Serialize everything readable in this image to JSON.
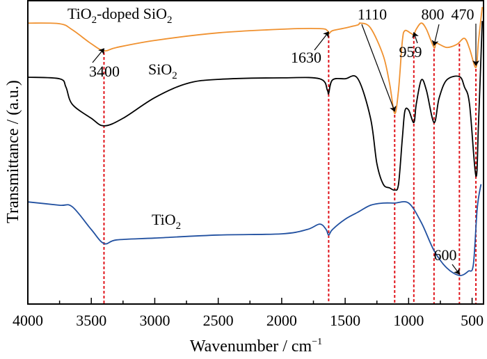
{
  "chart_data": {
    "type": "line",
    "title": "",
    "xlabel": "Wavenumber / cm",
    "xlabel_superscript": "−1",
    "ylabel": "Transmittance / (a.u.)",
    "xlim": [
      4000,
      410
    ],
    "ylim": [
      0,
      100
    ],
    "x_reversed": true,
    "grid": false,
    "x_ticks": [
      4000,
      3500,
      3000,
      2500,
      2000,
      1500,
      1000,
      500
    ],
    "x_tick_labels": [
      "4000",
      "3500",
      "3000",
      "2500",
      "2000",
      "1500",
      "1000",
      "500"
    ],
    "x_minor_ticks": [
      3750,
      3250,
      2750,
      2250,
      1750,
      1250,
      750
    ],
    "y_ticks_shown": false,
    "reference_lines": [
      3400,
      1630,
      1110,
      959,
      800,
      600,
      470
    ],
    "reference_line_color": "#e0141b",
    "series": [
      {
        "name": "TiO2-doped SiO2",
        "label_main": "TiO",
        "label_sub": "2",
        "label_rest": "-doped SiO",
        "label_sub2": "2",
        "color": "#f0912f",
        "x": [
          4000,
          3750,
          3650,
          3500,
          3400,
          3300,
          3000,
          2500,
          2000,
          1700,
          1640,
          1630,
          1600,
          1500,
          1400,
          1380,
          1300,
          1200,
          1150,
          1110,
          1080,
          1050,
          1030,
          980,
          959,
          940,
          900,
          860,
          800,
          780,
          700,
          620,
          560,
          520,
          470,
          450,
          420
        ],
        "y": [
          92.4,
          92.2,
          90.2,
          85.6,
          83.3,
          84.4,
          86.7,
          89.2,
          90.4,
          90.6,
          89.9,
          88.8,
          89.9,
          90.8,
          91.8,
          92.4,
          90.8,
          81.7,
          72.5,
          62.7,
          70.3,
          86.3,
          89.9,
          89.0,
          88.6,
          90.4,
          92.4,
          90.4,
          84.4,
          85.8,
          84.4,
          85.4,
          87.4,
          84.0,
          77.8,
          86.3,
          97.7
        ]
      },
      {
        "name": "SiO2",
        "label_main": "SiO",
        "label_sub": "2",
        "color": "#000000",
        "x": [
          4000,
          3750,
          3700,
          3650,
          3500,
          3400,
          3250,
          3000,
          2750,
          2500,
          2000,
          1700,
          1640,
          1630,
          1600,
          1500,
          1400,
          1300,
          1250,
          1200,
          1150,
          1110,
          1080,
          1050,
          1030,
          1000,
          959,
          940,
          900,
          860,
          800,
          760,
          700,
          600,
          560,
          520,
          470,
          450,
          420
        ],
        "y": [
          74.6,
          74.1,
          71.4,
          65.7,
          61.1,
          58.6,
          61.1,
          67.9,
          72.5,
          73.9,
          74.4,
          74.1,
          70.3,
          69.3,
          73.7,
          74.1,
          74.1,
          61.1,
          46.2,
          39.4,
          38.2,
          37.5,
          39.4,
          54.2,
          63.4,
          63.8,
          59.7,
          65.7,
          73.7,
          70.3,
          59.7,
          67.7,
          73.7,
          74.8,
          71.4,
          65.7,
          42.1,
          58.8,
          93.1
        ]
      },
      {
        "name": "TiO2",
        "label_main": "TiO",
        "label_sub": "2",
        "color": "#2150a0",
        "x": [
          4000,
          3750,
          3650,
          3500,
          3400,
          3300,
          3000,
          2500,
          2000,
          1800,
          1700,
          1650,
          1630,
          1600,
          1500,
          1400,
          1300,
          1200,
          1110,
          1000,
          900,
          800,
          700,
          600,
          530,
          490,
          460,
          430
        ],
        "y": [
          33.6,
          32.5,
          32.0,
          24.5,
          19.9,
          21.1,
          21.7,
          22.7,
          23.1,
          24.5,
          26.3,
          24.5,
          22.7,
          24.5,
          27.9,
          30.2,
          32.5,
          33.2,
          33.2,
          33.2,
          26.8,
          17.6,
          11.9,
          9.4,
          10.8,
          13.0,
          31.4,
          39.4
        ]
      }
    ],
    "annotations": [
      {
        "text": "3400",
        "target_x": 3400,
        "series": "TiO2-doped SiO2"
      },
      {
        "text": "1630",
        "target_x": 1630,
        "series": "TiO2-doped SiO2"
      },
      {
        "text": "1110",
        "target_x": 1110,
        "series": "TiO2-doped SiO2"
      },
      {
        "text": "959",
        "target_x": 959,
        "series": "TiO2-doped SiO2"
      },
      {
        "text": "800",
        "target_x": 800,
        "series": "TiO2-doped SiO2"
      },
      {
        "text": "470",
        "target_x": 470,
        "series": "TiO2-doped SiO2"
      },
      {
        "text": "600",
        "target_x": 600,
        "series": "TiO2"
      }
    ]
  }
}
